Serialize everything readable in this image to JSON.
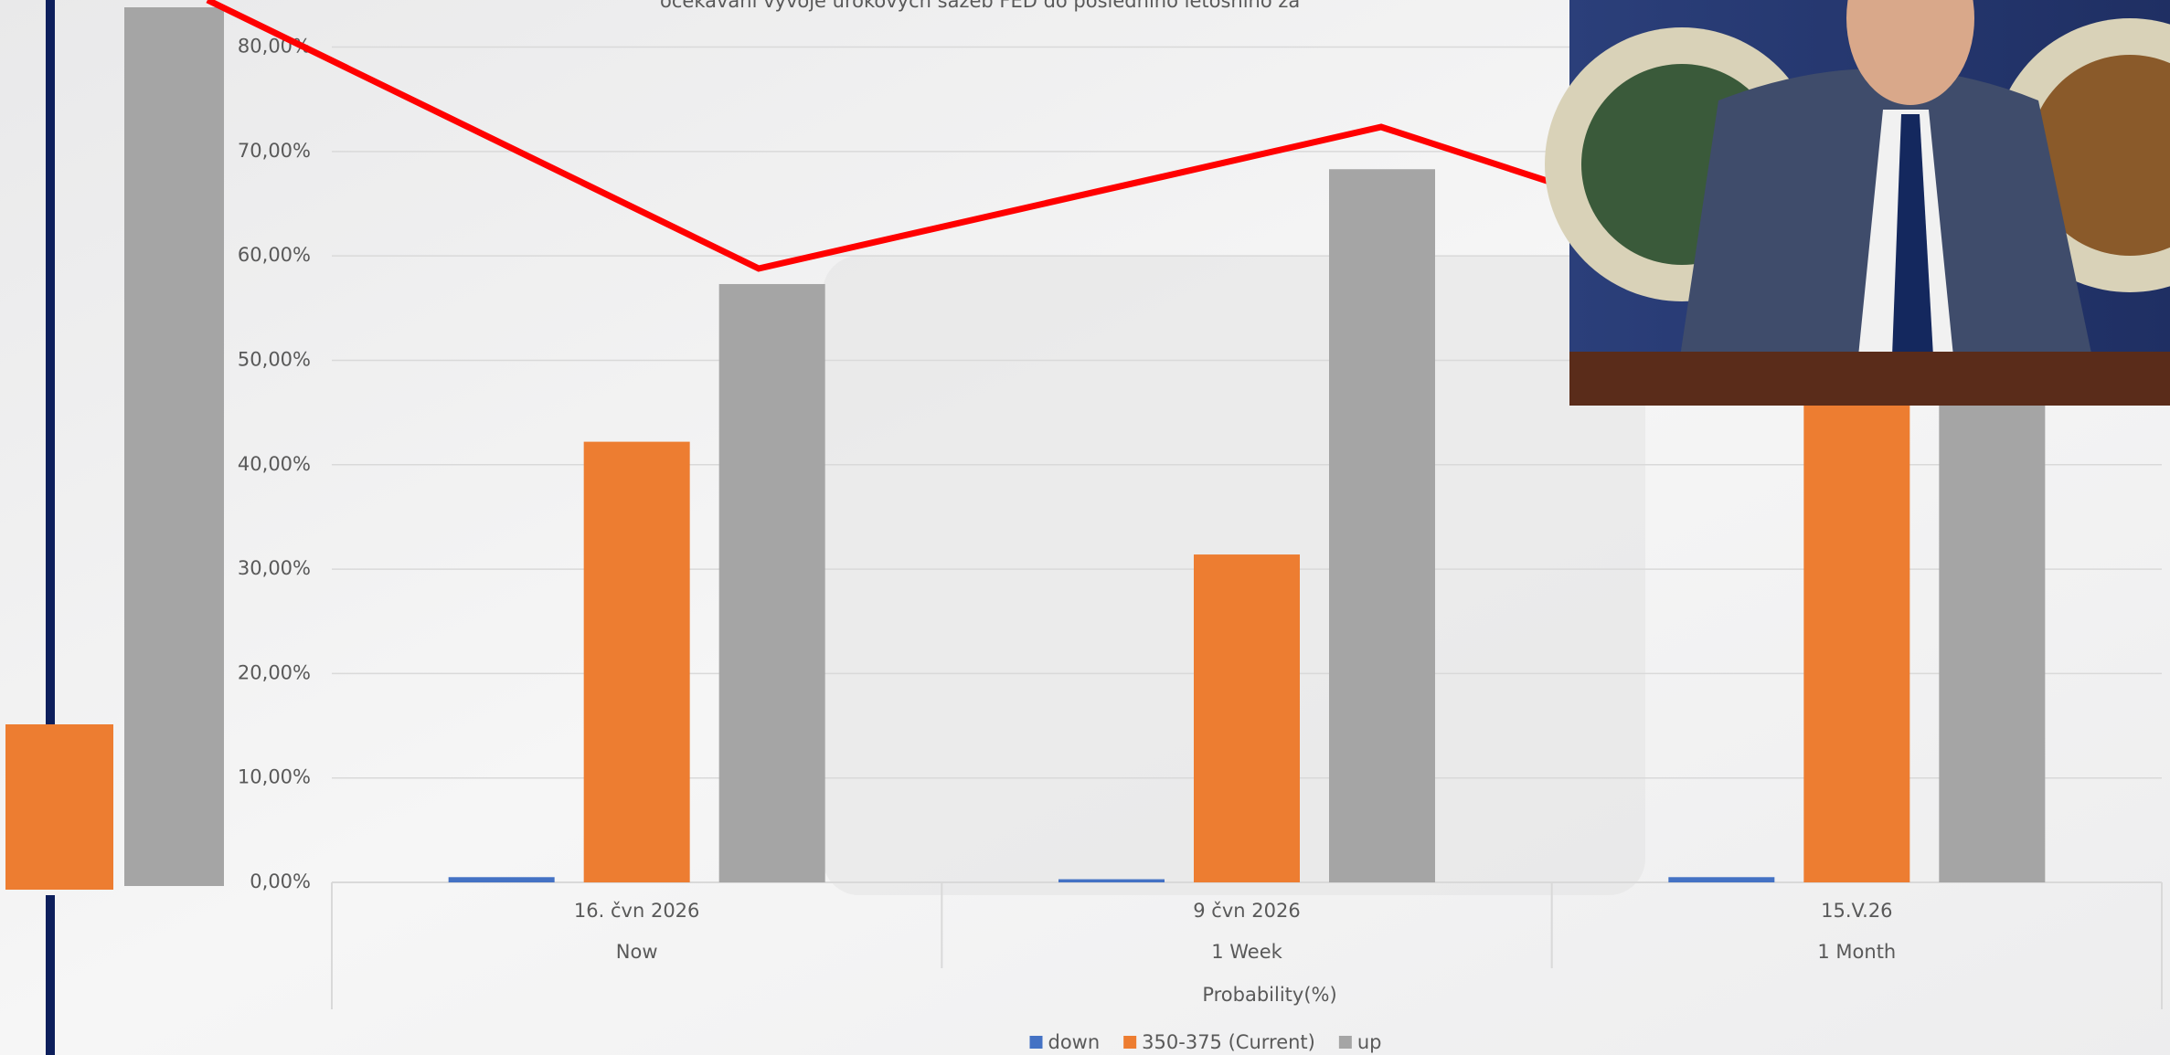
{
  "chart_data": {
    "type": "bar",
    "title": "očekávání vývoje úrokových sazeb FED do posledního letošního za",
    "x_label": "Probability(%)",
    "categories": [
      "16. čvn 2026",
      "9 čvn 2026",
      "15.V.26"
    ],
    "category_periods": [
      "Now",
      "1 Week",
      "1 Month"
    ],
    "series": [
      {
        "name": "down",
        "color": "#4472c4",
        "values": [
          0.5,
          0.3,
          0.5
        ]
      },
      {
        "name": "350-375 (Current)",
        "color": "#ed7d31",
        "values": [
          42.2,
          31.4,
          50.0
        ]
      },
      {
        "name": "up",
        "color": "#a5a5a5",
        "values": [
          57.3,
          68.3,
          49.5
        ]
      }
    ],
    "ylim": [
      0,
      80
    ],
    "yticks": [
      {
        "value": 0,
        "label": "0,00%"
      },
      {
        "value": 10,
        "label": "10,00%"
      },
      {
        "value": 20,
        "label": "20,00%"
      },
      {
        "value": 30,
        "label": "30,00%"
      },
      {
        "value": 40,
        "label": "40,00%"
      },
      {
        "value": 50,
        "label": "50,00%"
      },
      {
        "value": 60,
        "label": "60,00%"
      },
      {
        "value": 70,
        "label": "70,00%"
      },
      {
        "value": 80,
        "label": "80,00%"
      }
    ],
    "grid": true,
    "legend": "bottom"
  }
}
